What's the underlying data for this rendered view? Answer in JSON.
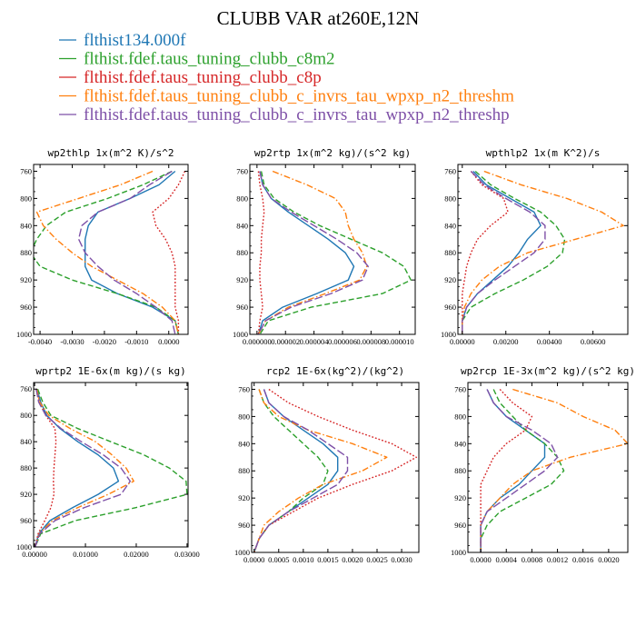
{
  "chart_data": {
    "type": "line",
    "title": "CLUBB VAR at260E,12N",
    "legend_placement": "top-left",
    "series_styles": [
      {
        "name": "flthist134.000f",
        "color": "#1f77b4",
        "dash": "solid"
      },
      {
        "name": "flthist.fdef.taus_tuning_clubb_c8m2",
        "color": "#2ca02c",
        "dash": "dashed"
      },
      {
        "name": "flthist.fdef.taus_tuning_clubb_c8p",
        "color": "#d62728",
        "dash": "dotted"
      },
      {
        "name": "flthist.fdef.taus_tuning_clubb_c_invrs_tau_wpxp_n2_threshm",
        "color": "#ff7f0e",
        "dash": "dashdot"
      },
      {
        "name": "flthist.fdef.taus_tuning_clubb_c_invrs_tau_wpxp_n2_threshp",
        "color": "#7e50a7",
        "dash": "longdash"
      }
    ],
    "panels": [
      {
        "title": "wp2thlp  1x(m^2 K)/s^2",
        "xlim": [
          -0.0042,
          0.0006
        ],
        "ylim": [
          1000,
          750
        ],
        "xticks": [
          -0.004,
          -0.003,
          -0.002,
          -0.001,
          0.0
        ],
        "xtick_labels": [
          "-0.0040",
          "-0.0030",
          "-0.0020",
          "-0.0010",
          "0.0000"
        ],
        "yticks": [
          760,
          800,
          840,
          880,
          920,
          960,
          1000
        ],
        "ytick_labels": [
          "760",
          "800",
          "840",
          "880",
          "920",
          "960",
          "1000"
        ],
        "y": [
          760,
          780,
          800,
          820,
          840,
          860,
          880,
          900,
          920,
          940,
          960,
          980,
          1000
        ],
        "series": [
          {
            "values": [
              0.0002,
              -0.0003,
              -0.0012,
              -0.0022,
              -0.0025,
              -0.0026,
              -0.0026,
              -0.0026,
              -0.0024,
              -0.0016,
              -0.0005,
              0.0002,
              0.0003
            ]
          },
          {
            "values": [
              0.0001,
              -0.0008,
              -0.0019,
              -0.0032,
              -0.0038,
              -0.0041,
              -0.0043,
              -0.004,
              -0.003,
              -0.0016,
              -0.0004,
              0.0002,
              0.0003
            ]
          },
          {
            "values": [
              0.0005,
              0.0003,
              0.0,
              -0.0005,
              -0.0004,
              -0.0001,
              0.0001,
              0.0002,
              0.0002,
              0.0002,
              0.0002,
              0.0003,
              0.0003
            ]
          },
          {
            "values": [
              -0.0005,
              -0.0015,
              -0.0028,
              -0.0041,
              -0.0039,
              -0.0035,
              -0.003,
              -0.0024,
              -0.0016,
              -0.0008,
              -0.0002,
              0.0002,
              0.0003
            ]
          },
          {
            "values": [
              0.0001,
              -0.0006,
              -0.0012,
              -0.0022,
              -0.0027,
              -0.0028,
              -0.0026,
              -0.0022,
              -0.0017,
              -0.001,
              -0.0004,
              0.0001,
              0.0002
            ]
          }
        ]
      },
      {
        "title": "wp2rtp  1x(m^2 kg)/(s^2 kg)",
        "xlim": [
          -5e-07,
          1.11e-05
        ],
        "ylim": [
          1000,
          750
        ],
        "xticks": [
          0.0,
          2e-06,
          4e-06,
          6e-06,
          8e-06,
          1e-05
        ],
        "xtick_labels": [
          "0.000000",
          "0.000002",
          "0.000004",
          "0.000006",
          "0.000008",
          "0.000010"
        ],
        "yticks": [
          760,
          800,
          840,
          880,
          920,
          960,
          1000
        ],
        "ytick_labels": [
          "760",
          "800",
          "840",
          "880",
          "920",
          "960",
          "1000"
        ],
        "y": [
          760,
          780,
          800,
          820,
          840,
          860,
          880,
          900,
          920,
          940,
          960,
          980,
          1000
        ],
        "series": [
          {
            "values": [
              2e-07,
              4e-07,
              1e-06,
              2.2e-06,
              3.6e-06,
              5e-06,
              6.2e-06,
              6.8e-06,
              6.4e-06,
              4.2e-06,
              1.8e-06,
              4e-07,
              1e-07
            ]
          },
          {
            "values": [
              3e-07,
              5e-07,
              1.2e-06,
              2.6e-06,
              4.4e-06,
              6.6e-06,
              8.8e-06,
              1.03e-05,
              1.08e-05,
              8.8e-06,
              3.8e-06,
              8e-07,
              2e-07
            ]
          },
          {
            "values": [
              1e-07,
              2e-07,
              4e-07,
              5e-07,
              4e-07,
              3e-07,
              3e-07,
              2e-07,
              2e-07,
              3e-07,
              4e-07,
              2e-07,
              1e-07
            ]
          },
          {
            "values": [
              1.1e-06,
              3.5e-06,
              5.5e-06,
              6.2e-06,
              6.4e-06,
              6.8e-06,
              7.4e-06,
              7.7e-06,
              7.2e-06,
              4.8e-06,
              2.2e-06,
              6e-07,
              1e-07
            ]
          },
          {
            "values": [
              2e-07,
              4e-07,
              1e-06,
              2.4e-06,
              4e-06,
              5.6e-06,
              7e-06,
              7.8e-06,
              7.4e-06,
              5.2e-06,
              2.4e-06,
              6e-07,
              1e-07
            ]
          }
        ]
      },
      {
        "title": "wpthlp2  1x(m K^2)/s",
        "xlim": [
          -0.0002,
          0.0076
        ],
        "ylim": [
          1000,
          750
        ],
        "xticks": [
          0.0,
          0.002,
          0.004,
          0.006
        ],
        "xtick_labels": [
          "0.00000",
          "0.00200",
          "0.00400",
          "0.00600"
        ],
        "yticks": [
          760,
          800,
          840,
          880,
          920,
          960,
          1000
        ],
        "ytick_labels": [
          "760",
          "800",
          "840",
          "880",
          "920",
          "960",
          "1000"
        ],
        "y": [
          760,
          780,
          800,
          820,
          840,
          860,
          880,
          900,
          920,
          940,
          960,
          980,
          1000
        ],
        "series": [
          {
            "values": [
              0.0005,
              0.0011,
              0.0022,
              0.0033,
              0.0036,
              0.003,
              0.0026,
              0.0021,
              0.0014,
              0.0007,
              0.0002,
              0.0,
              0.0
            ]
          },
          {
            "values": [
              0.0006,
              0.0013,
              0.0024,
              0.0036,
              0.0043,
              0.0047,
              0.0046,
              0.0039,
              0.0028,
              0.0015,
              0.0004,
              0.0,
              0.0
            ]
          },
          {
            "values": [
              0.0004,
              0.0009,
              0.0019,
              0.0021,
              0.0013,
              0.0007,
              0.0004,
              0.0002,
              0.0001,
              0.0,
              0.0,
              0.0,
              0.0
            ]
          },
          {
            "values": [
              0.001,
              0.0027,
              0.0048,
              0.0064,
              0.0074,
              0.0052,
              0.003,
              0.0017,
              0.0009,
              0.0004,
              0.0001,
              0.0,
              0.0
            ]
          },
          {
            "values": [
              0.0004,
              0.001,
              0.002,
              0.0031,
              0.0038,
              0.0038,
              0.0033,
              0.0024,
              0.0015,
              0.0007,
              0.0002,
              0.0,
              0.0
            ]
          }
        ]
      },
      {
        "title": "wprtp2  1E-6x(m kg)/(s kg)",
        "xlim": [
          -0.0002,
          0.0302
        ],
        "ylim": [
          1000,
          750
        ],
        "xticks": [
          0.0,
          0.01,
          0.02,
          0.03
        ],
        "xtick_labels": [
          "0.00000",
          "0.01000",
          "0.02000",
          "0.03000"
        ],
        "yticks": [
          760,
          800,
          840,
          880,
          920,
          960,
          1000
        ],
        "ytick_labels": [
          "760",
          "800",
          "840",
          "880",
          "920",
          "960",
          "1000"
        ],
        "y": [
          760,
          780,
          800,
          820,
          840,
          860,
          880,
          900,
          920,
          940,
          960,
          980,
          1000
        ],
        "series": [
          {
            "values": [
              0.0005,
              0.0012,
              0.0024,
              0.005,
              0.0085,
              0.0125,
              0.0155,
              0.0165,
              0.0125,
              0.0075,
              0.003,
              0.0008,
              0.0001
            ]
          },
          {
            "values": [
              0.0006,
              0.0016,
              0.0032,
              0.0085,
              0.015,
              0.0215,
              0.0265,
              0.0298,
              0.03,
              0.02,
              0.008,
              0.0012,
              0.0001
            ]
          },
          {
            "values": [
              0.0003,
              0.0009,
              0.0022,
              0.004,
              0.0042,
              0.004,
              0.0038,
              0.0037,
              0.0038,
              0.0032,
              0.002,
              0.0007,
              0.0001
            ]
          },
          {
            "values": [
              0.0004,
              0.001,
              0.0028,
              0.007,
              0.012,
              0.0152,
              0.018,
              0.0195,
              0.0145,
              0.0085,
              0.0035,
              0.0009,
              0.0001
            ]
          },
          {
            "values": [
              0.0003,
              0.0008,
              0.0022,
              0.0052,
              0.0092,
              0.0135,
              0.017,
              0.0188,
              0.017,
              0.0098,
              0.004,
              0.001,
              0.0001
            ]
          }
        ]
      },
      {
        "title": "rcp2  1E-6x(kg^2)/(kg^2)",
        "xlim": [
          -5e-05,
          0.00335
        ],
        "ylim": [
          1000,
          750
        ],
        "xticks": [
          0.0,
          0.0005,
          0.001,
          0.0015,
          0.002,
          0.0025,
          0.003
        ],
        "xtick_labels": [
          "0.0000",
          "0.0005",
          "0.0010",
          "0.0015",
          "0.0020",
          "0.0025",
          "0.0030"
        ],
        "yticks": [
          760,
          800,
          840,
          880,
          920,
          960,
          1000
        ],
        "ytick_labels": [
          "760",
          "800",
          "840",
          "880",
          "920",
          "960",
          "1000"
        ],
        "y": [
          760,
          780,
          800,
          820,
          840,
          860,
          880,
          900,
          920,
          940,
          960,
          980,
          1000
        ],
        "series": [
          {
            "values": [
              0.0002,
              0.0003,
              0.0006,
              0.001,
              0.0014,
              0.0017,
              0.0017,
              0.0015,
              0.0011,
              0.0007,
              0.0003,
              0.0001,
              0.0
            ]
          },
          {
            "values": [
              0.0001,
              0.0002,
              0.0004,
              0.0007,
              0.001,
              0.0013,
              0.0015,
              0.0014,
              0.001,
              0.0007,
              0.0003,
              0.0001,
              0.0
            ]
          },
          {
            "values": [
              0.0003,
              0.0007,
              0.0013,
              0.002,
              0.0028,
              0.0033,
              0.0028,
              0.002,
              0.0013,
              0.0008,
              0.0003,
              0.0001,
              0.0
            ]
          },
          {
            "values": [
              0.0001,
              0.0002,
              0.0005,
              0.0011,
              0.002,
              0.0027,
              0.0022,
              0.0014,
              0.0009,
              0.0005,
              0.0002,
              0.0001,
              0.0
            ]
          },
          {
            "values": [
              0.0002,
              0.0003,
              0.0006,
              0.0011,
              0.0015,
              0.0019,
              0.0019,
              0.0017,
              0.0012,
              0.0007,
              0.0003,
              0.0001,
              0.0
            ]
          }
        ]
      },
      {
        "title": "wp2rcp  1E-3x(m^2 kg)/(s^2 kg)",
        "xlim": [
          -0.0002,
          0.0023
        ],
        "ylim": [
          1000,
          750
        ],
        "xticks": [
          0.0,
          0.0004,
          0.0008,
          0.0012,
          0.0016,
          0.002
        ],
        "xtick_labels": [
          "0.0000",
          "0.0004",
          "0.0008",
          "0.0012",
          "0.0016",
          "0.0020"
        ],
        "yticks": [
          760,
          800,
          840,
          880,
          920,
          960,
          1000
        ],
        "ytick_labels": [
          "760",
          "800",
          "840",
          "880",
          "920",
          "960",
          "1000"
        ],
        "y": [
          760,
          780,
          800,
          820,
          840,
          860,
          880,
          900,
          920,
          940,
          960,
          980,
          1000
        ],
        "series": [
          {
            "values": [
              0.0001,
              0.0002,
              0.0004,
              0.0007,
              0.001,
              0.001,
              0.0008,
              0.0006,
              0.0003,
              0.0001,
              0.0,
              0.0,
              0.0
            ]
          },
          {
            "values": [
              0.0002,
              0.0003,
              0.0005,
              0.0007,
              0.001,
              0.0012,
              0.0013,
              0.0011,
              0.0007,
              0.0003,
              0.0001,
              0.0,
              0.0
            ]
          },
          {
            "values": [
              0.0003,
              0.0005,
              0.0008,
              0.0007,
              0.0004,
              0.0002,
              0.0001,
              0.0,
              0.0,
              0.0,
              0.0,
              0.0,
              0.0
            ]
          },
          {
            "values": [
              0.0005,
              0.0012,
              0.0016,
              0.0021,
              0.0023,
              0.0014,
              0.0008,
              0.0005,
              0.0003,
              0.0001,
              0.0,
              0.0,
              0.0
            ]
          },
          {
            "values": [
              0.0001,
              0.0002,
              0.0004,
              0.0008,
              0.0011,
              0.0012,
              0.001,
              0.0007,
              0.0004,
              0.0001,
              0.0,
              0.0,
              0.0
            ]
          }
        ]
      }
    ]
  }
}
